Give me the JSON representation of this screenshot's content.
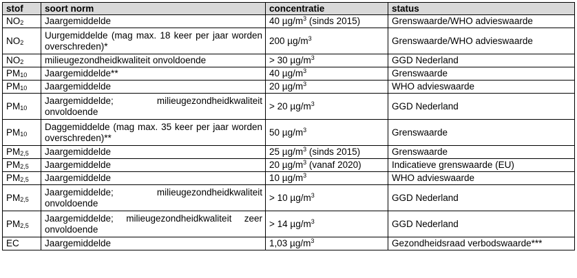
{
  "headers": {
    "stof": "stof",
    "soort_norm": "soort norm",
    "concentratie": "concentratie",
    "status": "status"
  },
  "unit": {
    "base": "µg/m",
    "exponent": "3"
  },
  "rows": [
    {
      "stof_base": "NO",
      "stof_sub": "2",
      "norm": "Jaargemiddelde",
      "value": "40",
      "note": " (sinds 2015)",
      "status": "Grenswaarde/WHO advieswaarde"
    },
    {
      "stof_base": "NO",
      "stof_sub": "2",
      "norm": "Uurgemiddelde (mag max. 18 keer per jaar worden overschreden)*",
      "value": "200",
      "note": "",
      "status": "Grenswaarde/WHO advieswaarde"
    },
    {
      "stof_base": "NO",
      "stof_sub": "2",
      "norm": "milieugezondheidkwaliteit onvoldoende",
      "value": "> 30",
      "note": "",
      "status": "GGD Nederland"
    },
    {
      "stof_base": "PM",
      "stof_sub": "10",
      "norm": "Jaargemiddelde**",
      "value": "40",
      "note": "",
      "status": "Grenswaarde"
    },
    {
      "stof_base": "PM",
      "stof_sub": "10",
      "norm": "Jaargemiddelde",
      "value": "20",
      "note": "",
      "status": "WHO advieswaarde"
    },
    {
      "stof_base": "PM",
      "stof_sub": "10",
      "norm": "Jaargemiddelde; milieugezondheidkwaliteit onvoldoende",
      "value": "> 20",
      "note": "",
      "status": "GGD Nederland"
    },
    {
      "stof_base": "PM",
      "stof_sub": "10",
      "norm": "Daggemiddelde (mag max. 35 keer per jaar worden overschreden)**",
      "value": "50",
      "note": "",
      "status": "Grenswaarde"
    },
    {
      "stof_base": "PM",
      "stof_sub": "2,5",
      "norm": "Jaargemiddelde",
      "value": "25",
      "note": " (sinds 2015)",
      "status": "Grenswaarde"
    },
    {
      "stof_base": "PM",
      "stof_sub": "2,5",
      "norm": "Jaargemiddelde",
      "value": "20",
      "note": " (vanaf 2020)",
      "status": "Indicatieve grenswaarde (EU)"
    },
    {
      "stof_base": "PM",
      "stof_sub": "2,5",
      "norm": "Jaargemiddelde",
      "value": "10",
      "note": "",
      "status": "WHO advieswaarde"
    },
    {
      "stof_base": "PM",
      "stof_sub": "2,5",
      "norm": "Jaargemiddelde; milieugezondheidkwaliteit onvoldoende",
      "value": "> 10",
      "note": "",
      "status": "GGD Nederland"
    },
    {
      "stof_base": "PM",
      "stof_sub": "2,5",
      "norm": "Jaargemiddelde; milieugezondheidkwaliteit zeer onvoldoende",
      "value": "> 14",
      "note": "",
      "status": "GGD Nederland"
    },
    {
      "stof_base": "EC",
      "stof_sub": "",
      "norm": "Jaargemiddelde",
      "value": "1,03",
      "note": "",
      "status": "Gezondheidsraad verbodswaarde***"
    }
  ]
}
